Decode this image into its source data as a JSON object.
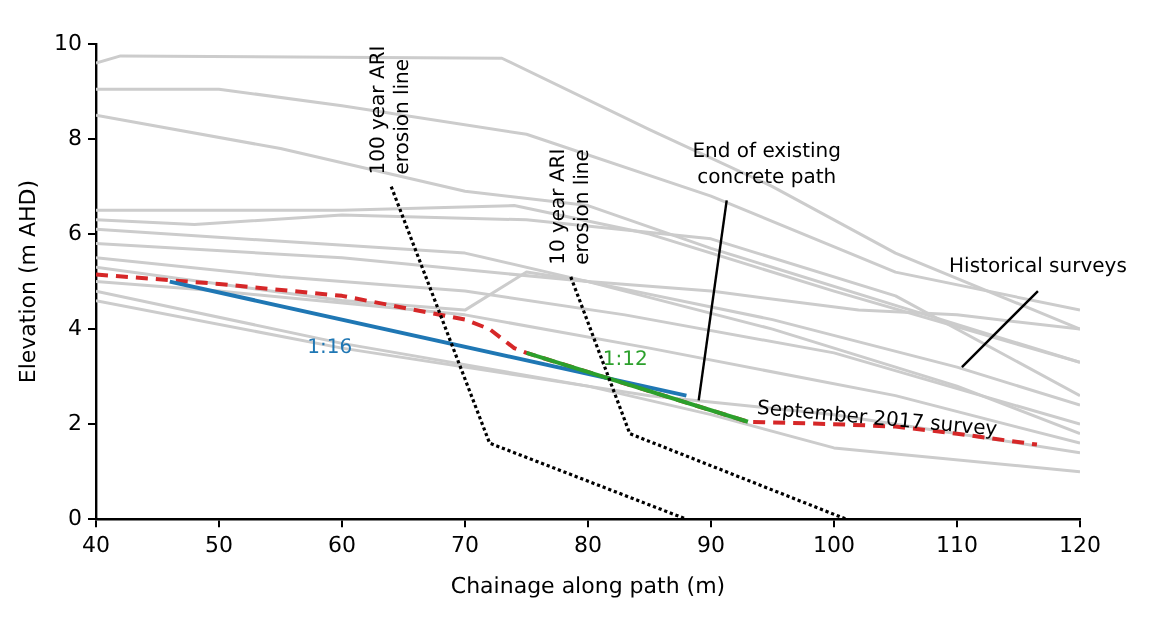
{
  "chart_data": {
    "type": "line",
    "xlabel": "Chainage along path (m)",
    "ylabel": "Elevation (m AHD)",
    "xlim": [
      40,
      120
    ],
    "xticks": [
      40,
      50,
      60,
      70,
      80,
      90,
      100,
      110,
      120
    ],
    "ylim": [
      0,
      10
    ],
    "yticks": [
      0,
      2,
      4,
      6,
      8,
      10
    ],
    "grid": false,
    "legend": false,
    "marker": "none",
    "series": [
      {
        "color": "#cccccc",
        "x": [
          40,
          42,
          73,
          85,
          95,
          105,
          120
        ],
        "values": [
          9.6,
          9.75,
          9.7,
          8.2,
          7.0,
          5.6,
          4.0
        ]
      },
      {
        "color": "#cccccc",
        "x": [
          40,
          50,
          60,
          75,
          90,
          105,
          120
        ],
        "values": [
          9.05,
          9.05,
          8.7,
          8.1,
          6.8,
          5.2,
          4.4
        ]
      },
      {
        "color": "#cccccc",
        "x": [
          40,
          55,
          70,
          80,
          90,
          105,
          120
        ],
        "values": [
          8.5,
          7.8,
          6.9,
          6.6,
          5.7,
          4.5,
          3.3
        ]
      },
      {
        "color": "#cccccc",
        "x": [
          40,
          60,
          74,
          85,
          100,
          120
        ],
        "values": [
          6.5,
          6.5,
          6.6,
          6.0,
          4.8,
          3.3
        ]
      },
      {
        "color": "#cccccc",
        "x": [
          40,
          48,
          60,
          75,
          90,
          105,
          120
        ],
        "values": [
          6.3,
          6.2,
          6.4,
          6.3,
          5.9,
          4.7,
          2.6
        ]
      },
      {
        "color": "#cccccc",
        "x": [
          40,
          70,
          80,
          90,
          102,
          110,
          120
        ],
        "values": [
          6.1,
          5.6,
          5.0,
          4.8,
          4.4,
          4.3,
          4.0
        ]
      },
      {
        "color": "#cccccc",
        "x": [
          40,
          60,
          80,
          95,
          110,
          120
        ],
        "values": [
          5.8,
          5.5,
          5.0,
          4.2,
          3.2,
          2.4
        ]
      },
      {
        "color": "#cccccc",
        "x": [
          40,
          55,
          70,
          83,
          100,
          120
        ],
        "values": [
          5.5,
          5.1,
          4.8,
          4.3,
          3.5,
          2.0
        ]
      },
      {
        "color": "#cccccc",
        "x": [
          40,
          60,
          70,
          75,
          80,
          95,
          110,
          120
        ],
        "values": [
          5.3,
          4.6,
          4.4,
          5.2,
          5.0,
          4.0,
          2.8,
          1.8
        ]
      },
      {
        "color": "#cccccc",
        "x": [
          40,
          50,
          70,
          85,
          105,
          120
        ],
        "values": [
          5.0,
          4.8,
          4.3,
          3.6,
          2.6,
          1.6
        ]
      },
      {
        "color": "#cccccc",
        "x": [
          40,
          60,
          75,
          85,
          100,
          120
        ],
        "values": [
          4.6,
          3.6,
          3.0,
          2.6,
          2.2,
          1.4
        ]
      },
      {
        "color": "#cccccc",
        "x": [
          40,
          60,
          80,
          90,
          100,
          120
        ],
        "values": [
          4.8,
          3.7,
          2.8,
          2.2,
          1.5,
          1.0
        ]
      },
      {
        "color": "#d62728",
        "line_style": "dashed",
        "x": [
          40,
          50,
          60,
          65,
          70,
          72,
          74,
          75,
          93,
          100,
          105,
          110,
          116.5
        ],
        "values": [
          5.15,
          4.95,
          4.7,
          4.45,
          4.2,
          4.0,
          3.6,
          3.5,
          2.05,
          2.0,
          1.95,
          1.8,
          1.57
        ]
      },
      {
        "color": "#1f77b4",
        "x": [
          46,
          88
        ],
        "values": [
          5.0,
          2.6
        ]
      },
      {
        "color": "#2ca02c",
        "x": [
          75,
          93
        ],
        "values": [
          3.5,
          2.05
        ]
      },
      {
        "color": "#000000",
        "line_style": "dotted",
        "x": [
          64,
          72,
          88
        ],
        "values": [
          7.0,
          1.6,
          0
        ]
      },
      {
        "color": "#000000",
        "line_style": "dotted",
        "x": [
          78.6,
          83.4,
          101
        ],
        "values": [
          5.1,
          1.8,
          0
        ]
      }
    ],
    "annotations": [
      {
        "text": "100 year ARI erosion line",
        "x": 64,
        "y": 7.0
      },
      {
        "text": "10 year ARI erosion line",
        "x": 78.6,
        "y": 5.1
      },
      {
        "text": "End of existing concrete path",
        "x": 89,
        "y": 2.5
      },
      {
        "text": "Historical surveys",
        "x": 110.4,
        "y": 3.2
      },
      {
        "text": "1:16",
        "x": 59,
        "y": 3.6
      },
      "1:12",
      {
        "text": "September 2017 survey",
        "x": 103.5,
        "y": 2.1
      }
    ]
  }
}
